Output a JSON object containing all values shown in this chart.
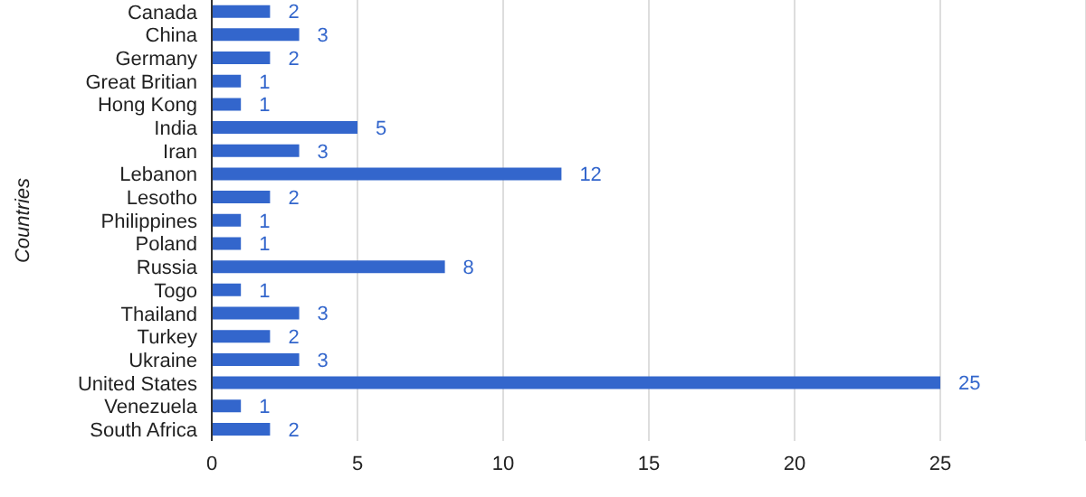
{
  "chart_data": {
    "type": "bar",
    "orientation": "horizontal",
    "ylabel": "Countries",
    "categories": [
      "Canada",
      "China",
      "Germany",
      "Great Britian",
      "Hong Kong",
      "India",
      "Iran",
      "Lebanon",
      "Lesotho",
      "Philippines",
      "Poland",
      "Russia",
      "Togo",
      "Thailand",
      "Turkey",
      "Ukraine",
      "United States",
      "Venezuela",
      "South Africa"
    ],
    "values": [
      2,
      3,
      2,
      1,
      1,
      5,
      3,
      12,
      2,
      1,
      1,
      8,
      1,
      3,
      2,
      3,
      25,
      1,
      2
    ],
    "color": "#3366cc",
    "xlim": [
      0,
      30
    ],
    "xticks": [
      0,
      5,
      10,
      15,
      20,
      25
    ],
    "grid": "x",
    "data_labels": true
  }
}
